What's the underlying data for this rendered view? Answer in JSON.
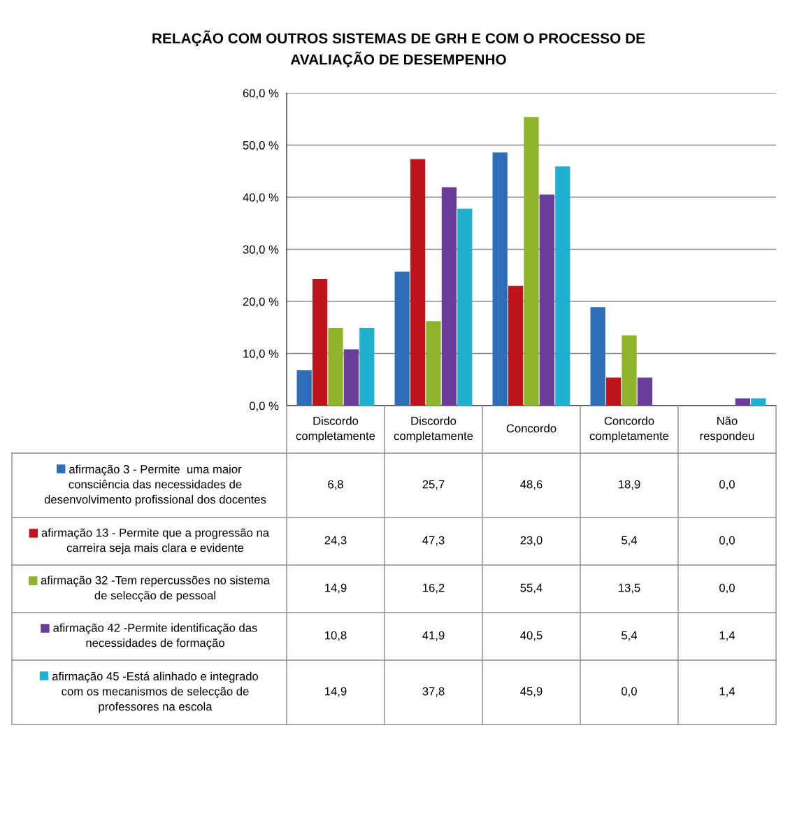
{
  "chart_data": {
    "type": "bar",
    "title": "RELAÇÃO COM OUTROS SISTEMAS DE GRH E COM O PROCESSO DE AVALIAÇÃO DE DESEMPENHO",
    "categories": [
      "Discordo completamente",
      "Discordo completamente",
      "Concordo",
      "Concordo completamente",
      "Não respondeu"
    ],
    "series": [
      {
        "name": "afirmação 3 - Permite  uma maior consciência das necessidades de desenvolvimento profissional dos docentes",
        "color": "#2e6db8",
        "values": [
          6.8,
          25.7,
          48.6,
          18.9,
          0.0
        ],
        "value_labels": [
          "6,8",
          "25,7",
          "48,6",
          "18,9",
          "0,0"
        ]
      },
      {
        "name": "afirmação 13 - Permite que a progressão na carreira seja mais clara e evidente",
        "color": "#c0141c",
        "values": [
          24.3,
          47.3,
          23.0,
          5.4,
          0.0
        ],
        "value_labels": [
          "24,3",
          "47,3",
          "23,0",
          "5,4",
          "0,0"
        ]
      },
      {
        "name": "afirmação 32 -Tem repercussões no sistema de selecção de pessoal",
        "color": "#8db42a",
        "values": [
          14.9,
          16.2,
          55.4,
          13.5,
          0.0
        ],
        "value_labels": [
          "14,9",
          "16,2",
          "55,4",
          "13,5",
          "0,0"
        ]
      },
      {
        "name": "afirmação 42 -Permite identificação das necessidades de formação",
        "color": "#6a3d9a",
        "values": [
          10.8,
          41.9,
          40.5,
          5.4,
          1.4
        ],
        "value_labels": [
          "10,8",
          "41,9",
          "40,5",
          "5,4",
          "1,4"
        ]
      },
      {
        "name": "afirmação 45 -Está alinhado e integrado com os mecanismos de selecção de professores na escola",
        "color": "#1fb0d0",
        "values": [
          14.9,
          37.8,
          45.9,
          0.0,
          1.4
        ],
        "value_labels": [
          "14,9",
          "37,8",
          "45,9",
          "0,0",
          "1,4"
        ]
      }
    ],
    "ylim": [
      0,
      60
    ],
    "yticks": [
      {
        "value": 0,
        "label": "0,0 %"
      },
      {
        "value": 10,
        "label": "10,0 %"
      },
      {
        "value": 20,
        "label": "20,0 %"
      },
      {
        "value": 30,
        "label": "30,0 %"
      },
      {
        "value": 40,
        "label": "40,0 %"
      },
      {
        "value": 50,
        "label": "50,0 %"
      },
      {
        "value": 60,
        "label": "60,0 %"
      }
    ],
    "grid": "y",
    "legend": "bottom"
  }
}
